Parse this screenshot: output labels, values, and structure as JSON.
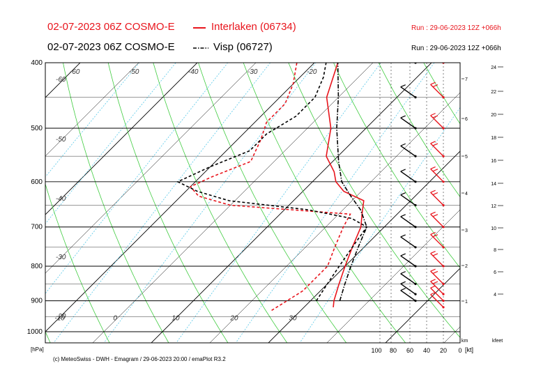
{
  "header": {
    "line1_left": "02-07-2023 06Z COSMO-E",
    "line1_station": "Interlaken (06734)",
    "line1_run": "Run : 29-06-2023 12Z +066h",
    "line2_left": "02-07-2023 06Z COSMO-E",
    "line2_station": "Visp (06727)",
    "line2_run": "Run : 29-06-2023 12Z +066h"
  },
  "footer": {
    "credit": "(c) MeteoSwiss - DWH - Emagram / 29-06-2023  20:00 / emaPlot R3.2",
    "pressure_unit": "[hPa]",
    "km_label": "km",
    "kfeet_label": "kfeet",
    "wind_unit": "[kt]"
  },
  "colors": {
    "interlaken": "#e8141c",
    "visp": "#000000",
    "dry_adiabat": "#3fcc3f",
    "mixing_ratio": "#56c8e8",
    "isotherm": "#000000",
    "title_red": "#e8141c"
  },
  "chart_data": {
    "type": "emagram",
    "title": "",
    "xlabel": "",
    "ylabel": "[hPa]",
    "pressure_range": [
      1000,
      400
    ],
    "pressure_ticks": [
      400,
      500,
      600,
      700,
      800,
      900,
      1000
    ],
    "isotherm_labels": [
      -60,
      -50,
      -40,
      -30,
      -20,
      -10,
      0,
      10,
      20,
      30
    ],
    "left_temperature_labels": [
      -60,
      -50,
      -40,
      -30,
      -20
    ],
    "wind_speed_ticks": [
      100,
      80,
      60,
      40,
      20,
      0
    ],
    "km_ticks": [
      1,
      2,
      3,
      4,
      5,
      6,
      7
    ],
    "kfeet_ticks": [
      4,
      6,
      8,
      10,
      12,
      14,
      16,
      18,
      20,
      22,
      24
    ],
    "series": [
      {
        "name": "Interlaken (06734)",
        "style": "solid",
        "temperature": [
          [
            920,
            25
          ],
          [
            900,
            24
          ],
          [
            850,
            22
          ],
          [
            800,
            20
          ],
          [
            750,
            18
          ],
          [
            700,
            16
          ],
          [
            670,
            14
          ],
          [
            640,
            12
          ],
          [
            620,
            7
          ],
          [
            600,
            4
          ],
          [
            580,
            2
          ],
          [
            550,
            -2
          ],
          [
            500,
            -6
          ],
          [
            450,
            -12
          ],
          [
            400,
            -16
          ]
        ],
        "dewpoint": [
          [
            930,
            15
          ],
          [
            900,
            16
          ],
          [
            870,
            17
          ],
          [
            850,
            17
          ],
          [
            800,
            17
          ],
          [
            750,
            15
          ],
          [
            700,
            13
          ],
          [
            670,
            12
          ],
          [
            650,
            -10
          ],
          [
            630,
            -17
          ],
          [
            610,
            -20
          ],
          [
            590,
            -18
          ],
          [
            560,
            -14
          ],
          [
            520,
            -16
          ],
          [
            490,
            -18
          ],
          [
            460,
            -18
          ],
          [
            430,
            -20
          ],
          [
            400,
            -23
          ]
        ]
      },
      {
        "name": "Visp (06727)",
        "style": "dash-dot",
        "temperature": [
          [
            900,
            25
          ],
          [
            850,
            23
          ],
          [
            800,
            21
          ],
          [
            750,
            19
          ],
          [
            700,
            17
          ],
          [
            660,
            13
          ],
          [
            630,
            9
          ],
          [
            600,
            5
          ],
          [
            560,
            1
          ],
          [
            500,
            -5
          ],
          [
            450,
            -10
          ],
          [
            400,
            -16
          ]
        ],
        "dewpoint": [
          [
            900,
            21
          ],
          [
            850,
            20
          ],
          [
            800,
            19
          ],
          [
            750,
            18
          ],
          [
            700,
            17
          ],
          [
            680,
            13
          ],
          [
            660,
            4
          ],
          [
            640,
            -11
          ],
          [
            620,
            -18
          ],
          [
            600,
            -23
          ],
          [
            570,
            -20
          ],
          [
            540,
            -16
          ],
          [
            510,
            -16
          ],
          [
            480,
            -14
          ],
          [
            450,
            -14
          ],
          [
            420,
            -16
          ],
          [
            400,
            -18
          ]
        ]
      }
    ],
    "wind_profiles": [
      {
        "name": "Interlaken (06734)",
        "barbs": [
          [
            920,
            10
          ],
          [
            900,
            12
          ],
          [
            880,
            15
          ],
          [
            850,
            20
          ],
          [
            800,
            20
          ],
          [
            750,
            22
          ],
          [
            700,
            22
          ],
          [
            650,
            20
          ],
          [
            600,
            18
          ],
          [
            550,
            18
          ],
          [
            500,
            18
          ],
          [
            450,
            20
          ],
          [
            400,
            20
          ]
        ]
      },
      {
        "name": "Visp (06727)",
        "barbs": [
          [
            900,
            8
          ],
          [
            880,
            10
          ],
          [
            850,
            12
          ],
          [
            800,
            14
          ],
          [
            750,
            14
          ],
          [
            700,
            14
          ],
          [
            650,
            12
          ],
          [
            600,
            12
          ],
          [
            550,
            10
          ],
          [
            500,
            10
          ],
          [
            450,
            10
          ],
          [
            400,
            10
          ]
        ]
      }
    ]
  }
}
